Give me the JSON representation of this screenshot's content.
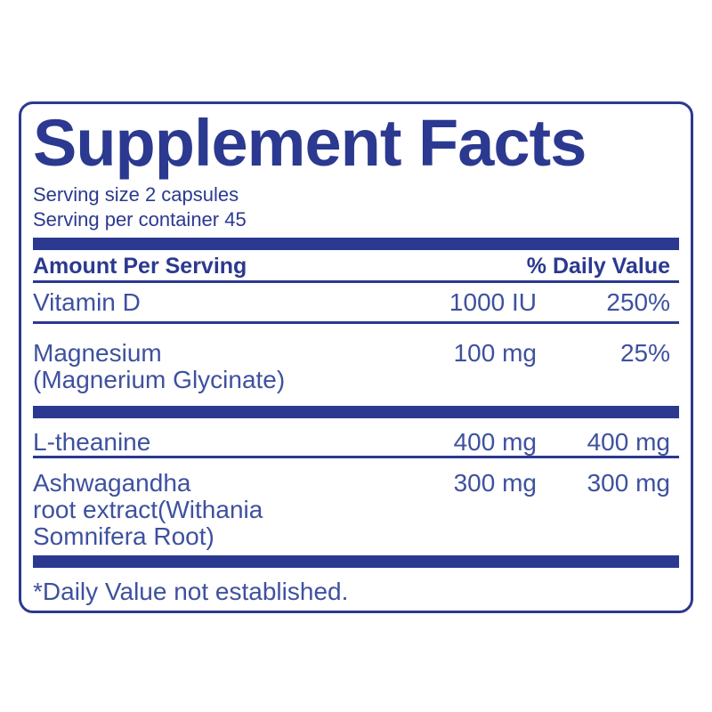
{
  "label": {
    "title": "Supplement Facts",
    "serving_size": "Serving size 2 capsules",
    "servings_per_container": "Serving per container 45",
    "header": {
      "amount_col": "Amount Per Serving",
      "daily_value_col": "% Daily Value"
    },
    "rows": [
      {
        "name": "Vitamin D",
        "amount": "1000 IU",
        "daily_value": "250%"
      },
      {
        "name": "Magnesium\n(Magnerium Glycinate)",
        "amount": "100 mg",
        "daily_value": "25%"
      },
      {
        "name": "L-theanine",
        "amount": "400 mg",
        "daily_value": "400 mg"
      },
      {
        "name": "Ashwagandha\nroot extract(Withania\nSomnifera Root)",
        "amount": "300 mg",
        "daily_value": "300 mg"
      }
    ],
    "footnote": "*Daily Value not established.",
    "colors": {
      "dark_blue": "#2B3990",
      "row_blue": "#3E519F",
      "background": "#FFFFFF"
    }
  }
}
